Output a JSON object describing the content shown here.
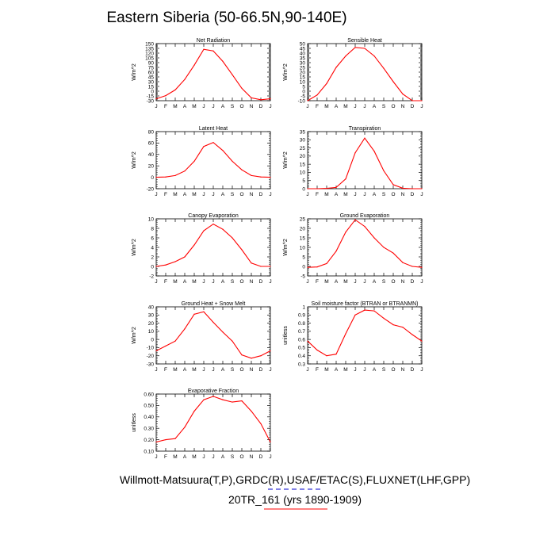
{
  "page": {
    "title": "Eastern Siberia (50-66.5N,90-140E)",
    "caption_line1": "Willmott-Matsuura(T,P),GRDC(R),USAF/ETAC(S),FLUXNET(LHF,GPP)",
    "caption_line2": "20TR_161 (yrs 1890-1909)",
    "series_color": "#ff0000",
    "legend_colors": [
      "#0000cc",
      "#ff0000"
    ]
  },
  "chart_data": [
    {
      "type": "line",
      "title": "Net Radiation",
      "ylabel": "W/m^2",
      "categories": [
        "J",
        "F",
        "M",
        "A",
        "M",
        "J",
        "J",
        "A",
        "S",
        "O",
        "N",
        "D",
        "J"
      ],
      "ylim": [
        -30,
        150
      ],
      "yticks": [
        -30,
        -15,
        0,
        15,
        30,
        45,
        60,
        75,
        90,
        105,
        120,
        135,
        150
      ],
      "yticklabels": [
        "-30",
        "-15",
        "0",
        "15",
        "30",
        "45",
        "60",
        "75",
        "90",
        "105",
        "120",
        "135",
        "150"
      ],
      "values": [
        -24,
        -14,
        4,
        37,
        82,
        132,
        127,
        94,
        52,
        9,
        -21,
        -27,
        -24
      ]
    },
    {
      "type": "line",
      "title": "Sensible Heat",
      "ylabel": "W/m^2",
      "categories": [
        "J",
        "F",
        "M",
        "A",
        "M",
        "J",
        "J",
        "A",
        "S",
        "O",
        "N",
        "D",
        "J"
      ],
      "ylim": [
        -10,
        50
      ],
      "yticks": [
        -10,
        -5,
        0,
        5,
        10,
        15,
        20,
        25,
        30,
        35,
        40,
        45,
        50
      ],
      "yticklabels": [
        "-10",
        "-5",
        "0",
        "5",
        "10",
        "15",
        "20",
        "25",
        "30",
        "35",
        "40",
        "45",
        "50"
      ],
      "values": [
        -10,
        -4,
        8,
        25,
        37,
        46,
        45,
        37,
        24,
        10,
        -3,
        -10,
        -10
      ]
    },
    {
      "type": "line",
      "title": "Latent Heat",
      "ylabel": "W/m^2",
      "categories": [
        "J",
        "F",
        "M",
        "A",
        "M",
        "J",
        "J",
        "A",
        "S",
        "O",
        "N",
        "D",
        "J"
      ],
      "ylim": [
        -20,
        80
      ],
      "yticks": [
        -20,
        0,
        20,
        40,
        60,
        80
      ],
      "yticklabels": [
        "-20",
        "0",
        "20",
        "40",
        "60",
        "80"
      ],
      "values": [
        0,
        0.5,
        3,
        11,
        28,
        54,
        61,
        47,
        28,
        13,
        3,
        0.5,
        0
      ]
    },
    {
      "type": "line",
      "title": "Transpiration",
      "ylabel": "W/m^2",
      "categories": [
        "J",
        "F",
        "M",
        "A",
        "M",
        "J",
        "J",
        "A",
        "S",
        "O",
        "N",
        "D",
        "J"
      ],
      "ylim": [
        0,
        35
      ],
      "yticks": [
        0,
        5,
        10,
        15,
        20,
        25,
        30,
        35
      ],
      "yticklabels": [
        "0",
        "5",
        "10",
        "15",
        "20",
        "25",
        "30",
        "35"
      ],
      "values": [
        0,
        0,
        0.2,
        0.8,
        6,
        22,
        31,
        23,
        11,
        2.5,
        0.3,
        0,
        0
      ]
    },
    {
      "type": "line",
      "title": "Canopy Evaporation",
      "ylabel": "W/m^2",
      "categories": [
        "J",
        "F",
        "M",
        "A",
        "M",
        "J",
        "J",
        "A",
        "S",
        "O",
        "N",
        "D",
        "J"
      ],
      "ylim": [
        -2,
        10
      ],
      "yticks": [
        -2,
        0,
        2,
        4,
        6,
        8,
        10
      ],
      "yticklabels": [
        "-2",
        "0",
        "2",
        "4",
        "6",
        "8",
        "10"
      ],
      "values": [
        0,
        0.3,
        1,
        2,
        4.5,
        7.5,
        8.9,
        7.8,
        6,
        3.5,
        0.7,
        0,
        0
      ]
    },
    {
      "type": "line",
      "title": "Ground Evaporation",
      "ylabel": "W/m^2",
      "categories": [
        "J",
        "F",
        "M",
        "A",
        "M",
        "J",
        "J",
        "A",
        "S",
        "O",
        "N",
        "D",
        "J"
      ],
      "ylim": [
        -5,
        25
      ],
      "yticks": [
        -5,
        0,
        5,
        10,
        15,
        20,
        25
      ],
      "yticklabels": [
        "-5",
        "0",
        "5",
        "10",
        "15",
        "20",
        "25"
      ],
      "values": [
        -0.5,
        -0.3,
        1.5,
        8,
        18,
        24.5,
        21,
        15,
        10,
        7,
        2,
        0,
        -0.5
      ]
    },
    {
      "type": "line",
      "title": "Ground Heat + Snow Melt",
      "ylabel": "W/m^2",
      "categories": [
        "J",
        "F",
        "M",
        "A",
        "M",
        "J",
        "J",
        "A",
        "S",
        "O",
        "N",
        "D",
        "J"
      ],
      "ylim": [
        -30,
        40
      ],
      "yticks": [
        -30,
        -20,
        -10,
        0,
        10,
        20,
        30,
        40
      ],
      "yticklabels": [
        "-30",
        "-20",
        "-10",
        "0",
        "10",
        "20",
        "30",
        "40"
      ],
      "values": [
        -14,
        -8,
        -2,
        13,
        31,
        34,
        21,
        9,
        -2,
        -19,
        -23,
        -20,
        -14
      ]
    },
    {
      "type": "line",
      "title": "Soil moisture factor (BTRAN or BTRANMN)",
      "ylabel": "unitless",
      "categories": [
        "J",
        "F",
        "M",
        "A",
        "M",
        "J",
        "J",
        "A",
        "S",
        "O",
        "N",
        "D",
        "J"
      ],
      "ylim": [
        0.3,
        1.0
      ],
      "yticks": [
        0.3,
        0.4,
        0.5,
        0.6,
        0.7,
        0.8,
        0.9,
        1.0
      ],
      "yticklabels": [
        "0.3",
        "0.4",
        "0.5",
        "0.6",
        "0.7",
        "0.8",
        "0.9",
        "1"
      ],
      "values": [
        0.58,
        0.47,
        0.4,
        0.42,
        0.67,
        0.9,
        0.96,
        0.95,
        0.86,
        0.78,
        0.75,
        0.66,
        0.58
      ]
    },
    {
      "type": "line",
      "title": "Evaporative Fraction",
      "ylabel": "unitless",
      "categories": [
        "J",
        "F",
        "M",
        "A",
        "M",
        "J",
        "J",
        "A",
        "S",
        "O",
        "N",
        "D",
        "J"
      ],
      "ylim": [
        0.1,
        0.6
      ],
      "yticks": [
        0.1,
        0.2,
        0.3,
        0.4,
        0.5,
        0.6
      ],
      "yticklabels": [
        "0.10",
        "0.20",
        "0.30",
        "0.40",
        "0.50",
        "0.60"
      ],
      "values": [
        0.18,
        0.2,
        0.21,
        0.31,
        0.45,
        0.55,
        0.58,
        0.55,
        0.53,
        0.54,
        0.45,
        0.34,
        0.18
      ]
    }
  ]
}
